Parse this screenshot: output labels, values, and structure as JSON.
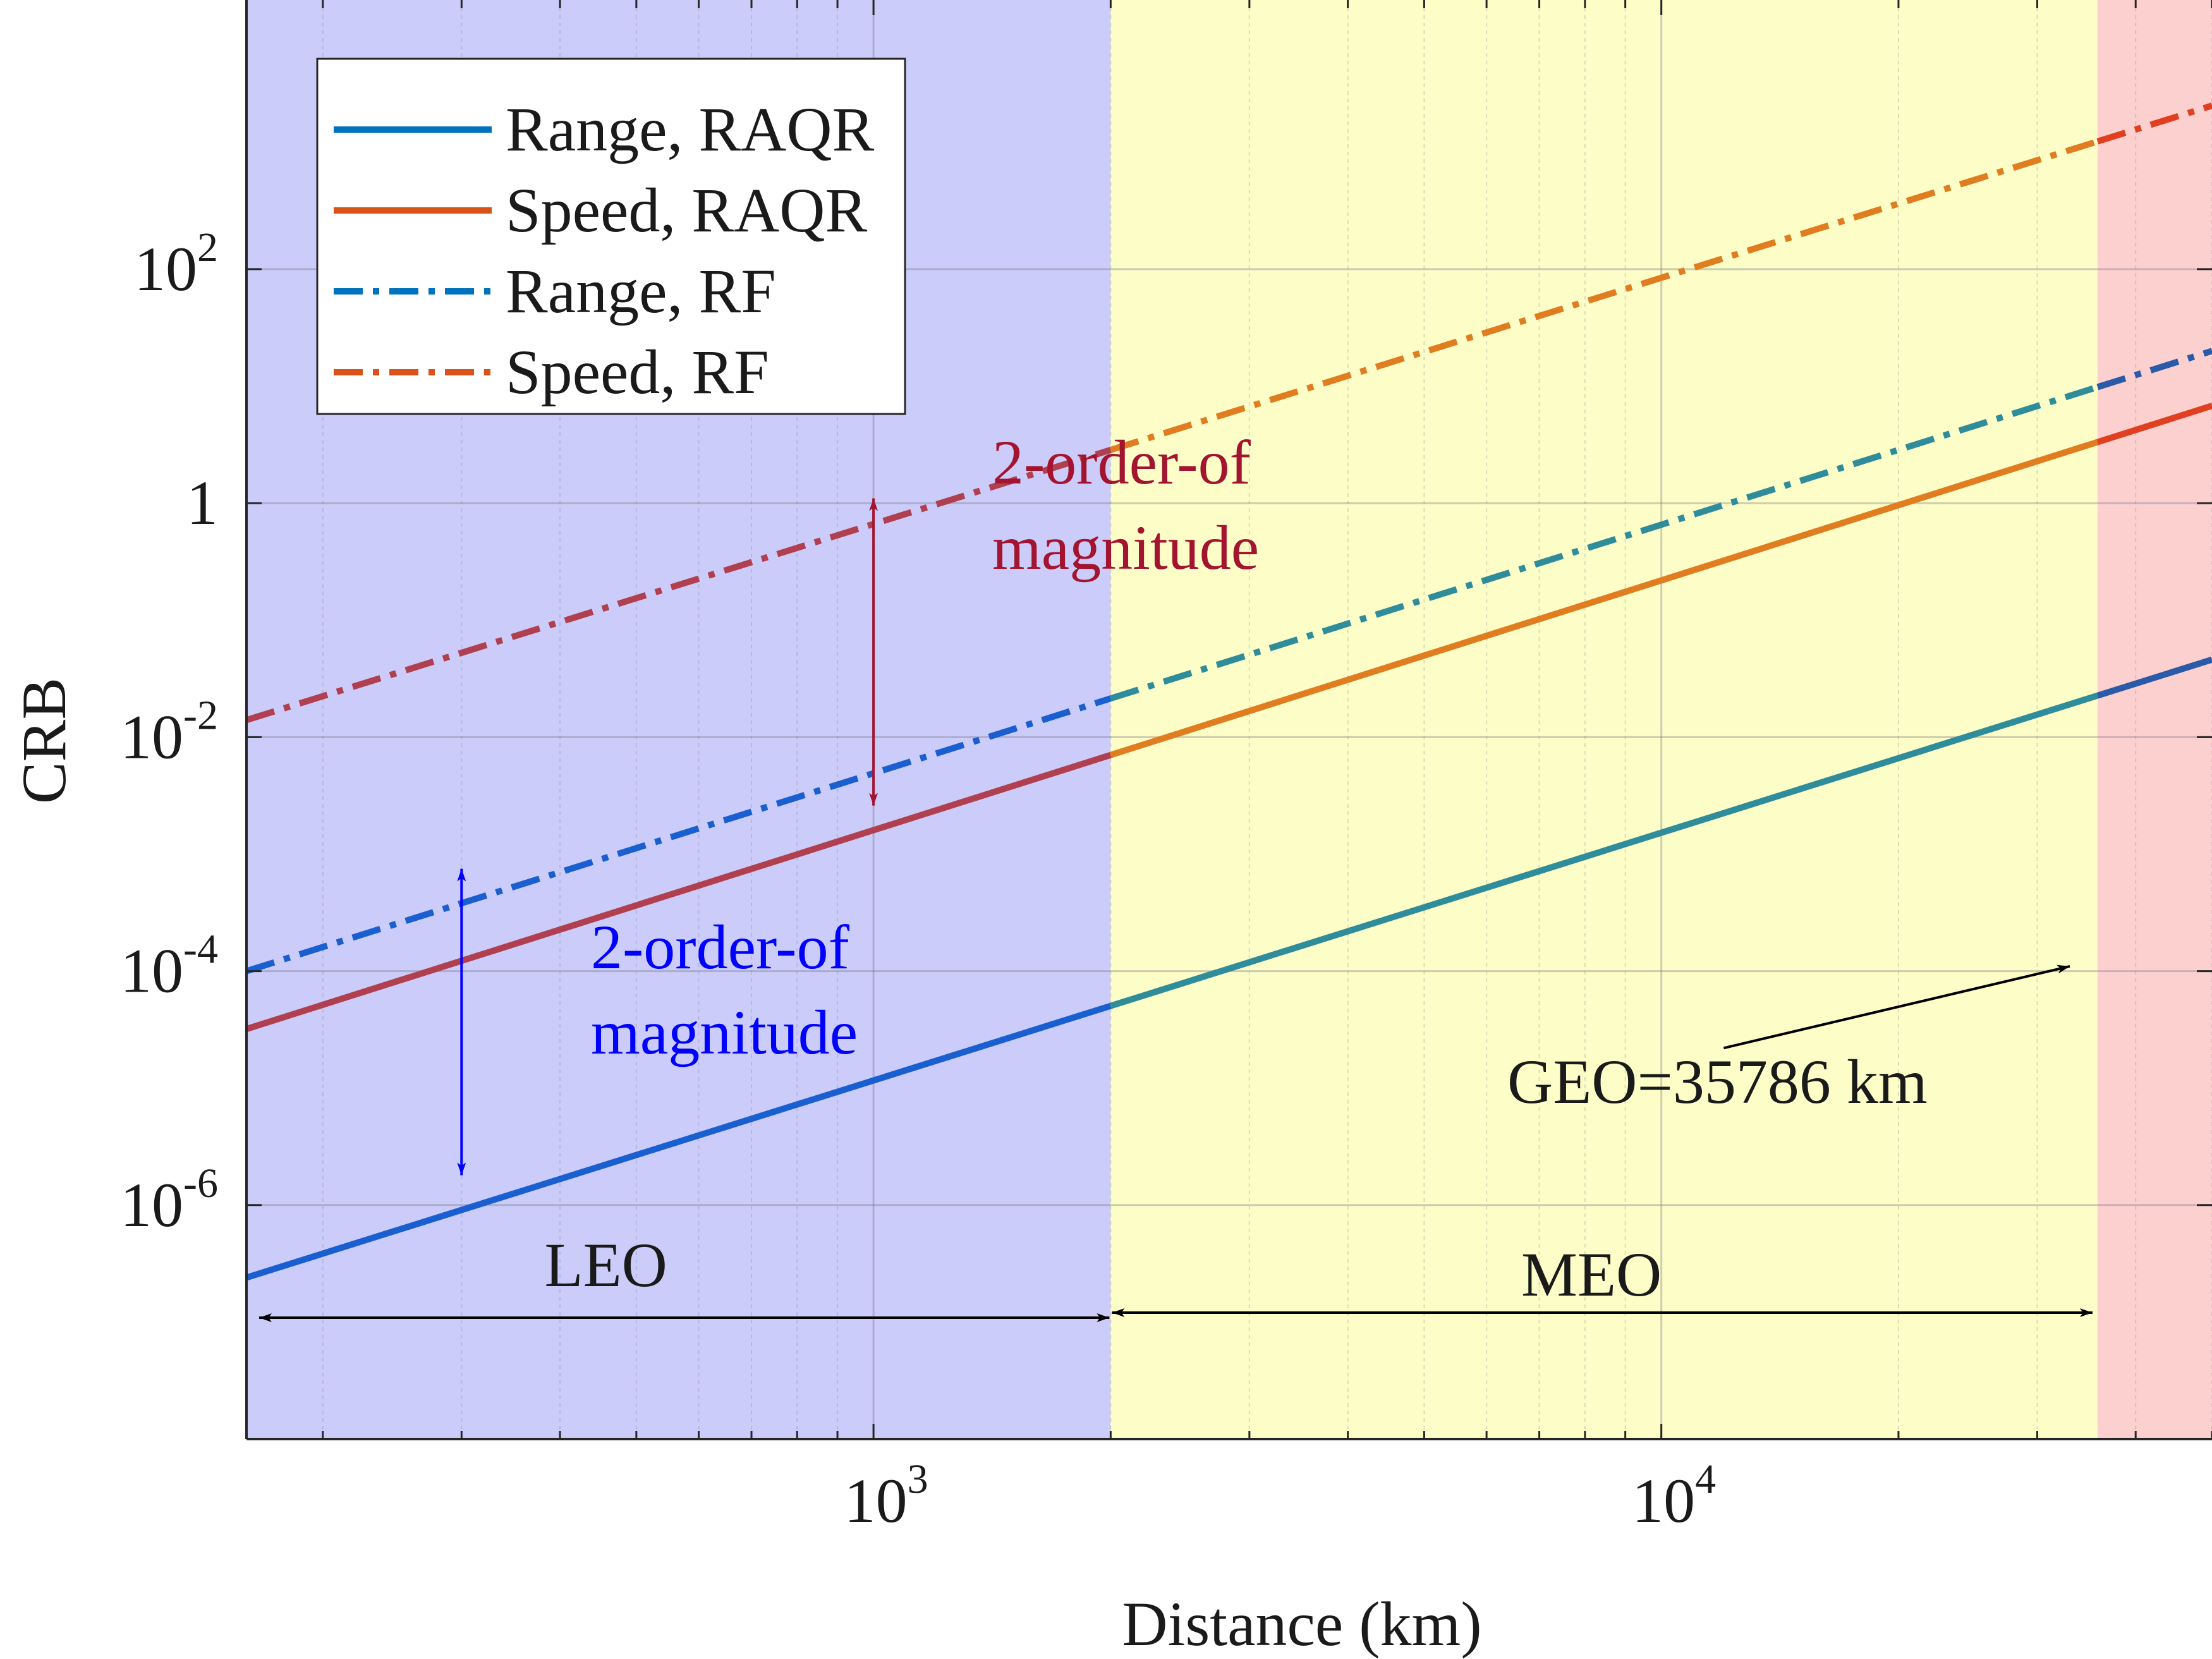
{
  "chart_data": {
    "type": "line",
    "title": "",
    "xlabel": "Distance (km)",
    "ylabel": "CRB",
    "x_scale": "log",
    "y_scale": "log",
    "xlim": [
      160,
      50000
    ],
    "ylim": [
      1e-08,
      20000
    ],
    "grid": true,
    "x_ticks": [
      {
        "value": 1000,
        "base": "10",
        "exp": "3"
      },
      {
        "value": 10000,
        "base": "10",
        "exp": "4"
      }
    ],
    "y_ticks": [
      {
        "value": 1e-06,
        "base": "10",
        "exp": "-6"
      },
      {
        "value": 0.0001,
        "base": "10",
        "exp": "-4"
      },
      {
        "value": 0.01,
        "base": "10",
        "exp": "-2"
      },
      {
        "value": 1,
        "base": "1",
        "exp": ""
      },
      {
        "value": 100,
        "base": "10",
        "exp": "2"
      }
    ],
    "series": [
      {
        "name": "Range, RAQR",
        "color": "#0072bd",
        "dash": "solid",
        "x": [
          160,
          50000
        ],
        "y": [
          2.4e-07,
          0.046
        ]
      },
      {
        "name": "Speed, RAQR",
        "color": "#d95319",
        "dash": "solid",
        "x": [
          160,
          50000
        ],
        "y": [
          3.2e-05,
          6.8
        ]
      },
      {
        "name": "Range, RF",
        "color": "#0072bd",
        "dash": "dashdot",
        "x": [
          160,
          50000
        ],
        "y": [
          0.0001,
          20
        ]
      },
      {
        "name": "Speed, RF",
        "color": "#d95319",
        "dash": "dashdot",
        "x": [
          160,
          50000
        ],
        "y": [
          0.014,
          2500
        ]
      }
    ],
    "regions": [
      {
        "name": "LEO",
        "from": 160,
        "to": 2000,
        "color": "#ccccfa"
      },
      {
        "name": "MEO",
        "from": 2000,
        "to": 35786,
        "color": "#fdfdc8"
      },
      {
        "name": "GEO",
        "from": 35786,
        "to": 50000,
        "color": "#fdd0d0"
      }
    ],
    "legend_position": "top-left",
    "annotations": {
      "red_gap": {
        "text_line1": "2-order-of",
        "text_line2": "magnitude",
        "color": "#a2142f",
        "x": 1000,
        "y_top": 1.1,
        "y_bottom": 0.0026
      },
      "blue_gap": {
        "text_line1": "2-order-of",
        "text_line2": "magnitude",
        "color": "#0000ff",
        "x": 300,
        "y_top": 0.00075,
        "y_bottom": 1.8e-06
      },
      "geo_label": {
        "text": "GEO=35786 km",
        "arrow_from_x": 12000,
        "arrow_from_y": 2.2e-05,
        "arrow_to_x": 33000,
        "arrow_to_y": 0.00011
      },
      "leo_label": {
        "text": "LEO",
        "x_from": 160,
        "x_to": 2000,
        "y": 1.5e-07
      },
      "meo_label": {
        "text": "MEO",
        "x_from": 2000,
        "x_to": 35786,
        "y": 1.5e-07
      }
    }
  }
}
